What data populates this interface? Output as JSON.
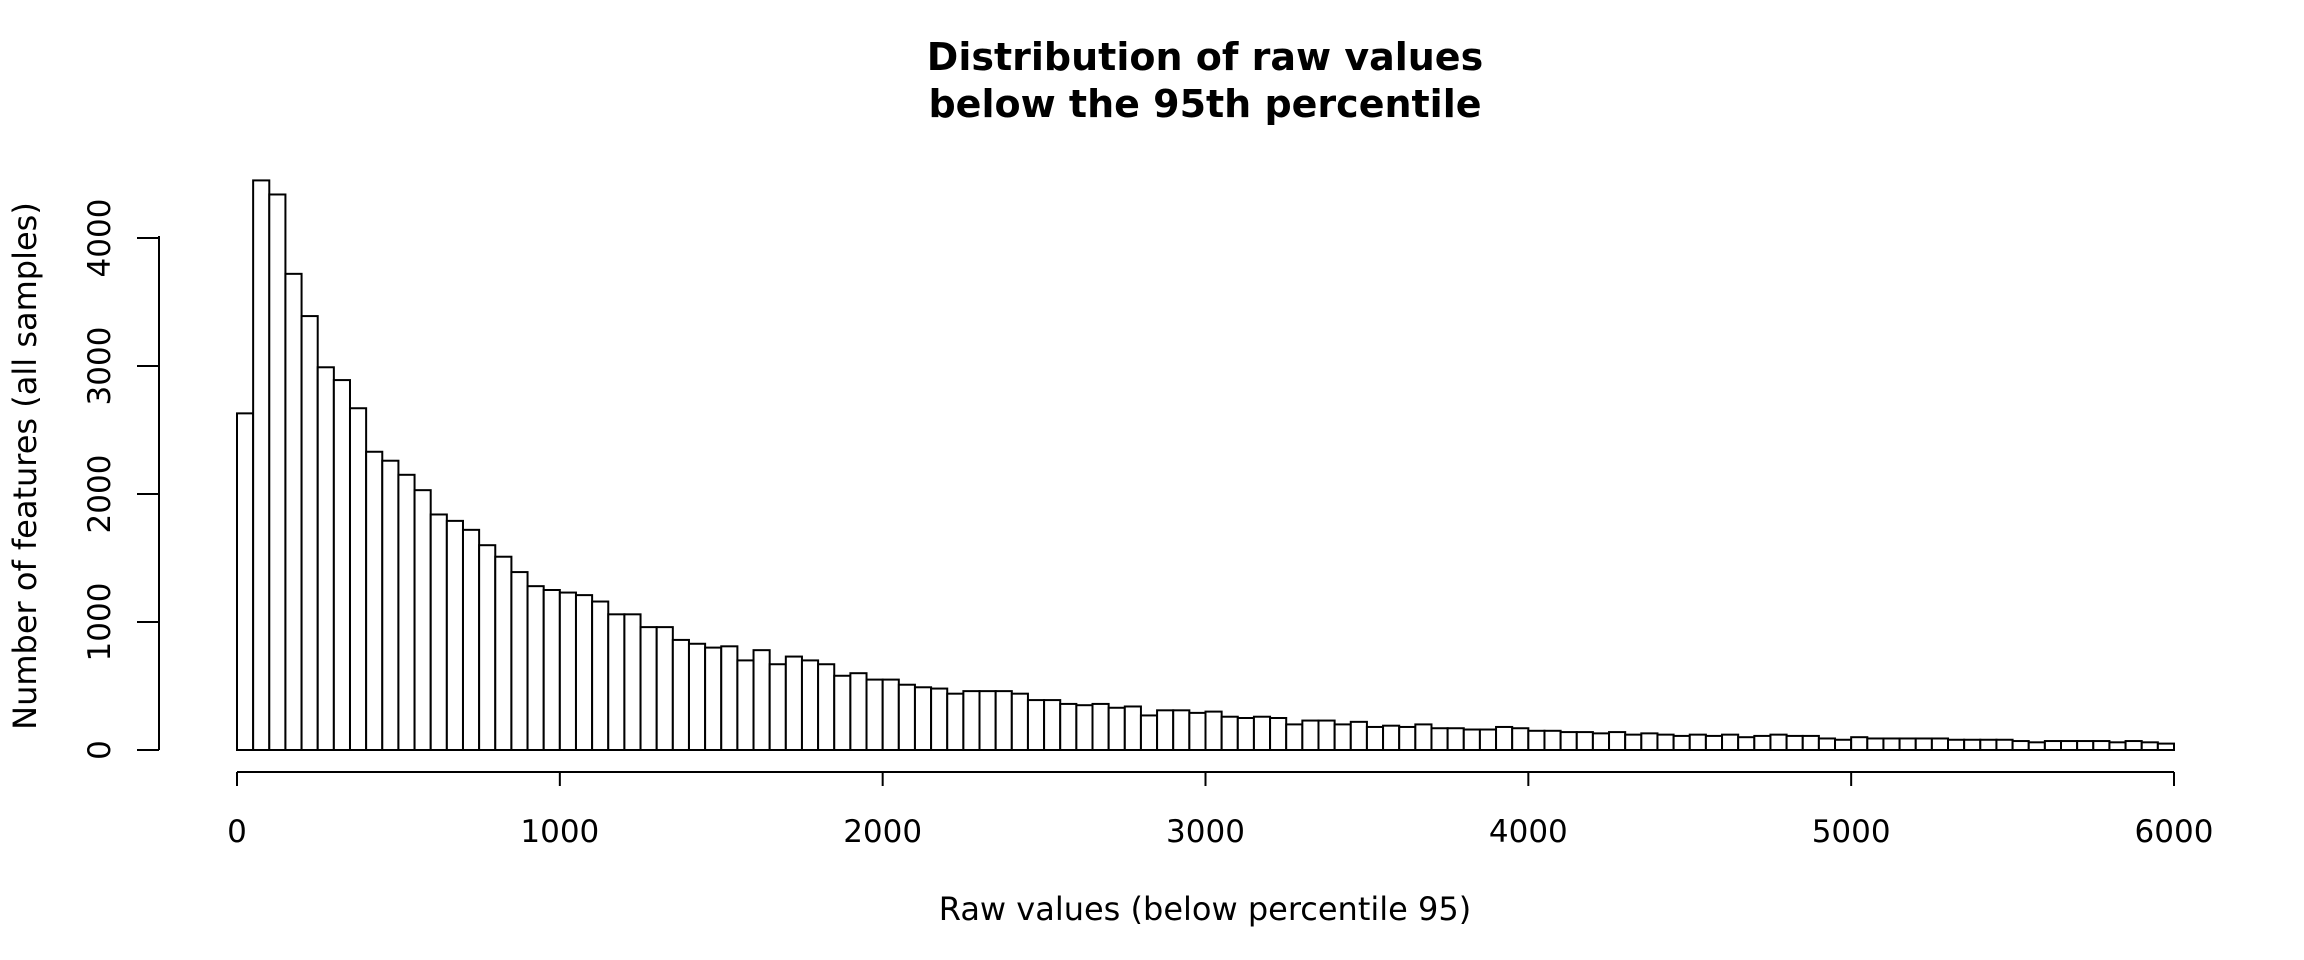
{
  "chart_data": {
    "type": "histogram",
    "title_line1": "Distribution of raw values",
    "title_line2": "below the 95th percentile",
    "xlabel": "Raw values (below percentile 95)",
    "ylabel": "Number of features (all samples)",
    "xlim": [
      0,
      6000
    ],
    "ylim": [
      0,
      4400
    ],
    "bin_width": 50,
    "xticks": [
      "0",
      "1000",
      "2000",
      "3000",
      "4000",
      "5000",
      "6000"
    ],
    "yticks": [
      "0",
      "1000",
      "2000",
      "3000",
      "4000"
    ],
    "grid": false,
    "bins_start": 0,
    "counts": [
      2630,
      4450,
      4340,
      3720,
      3390,
      2990,
      2890,
      2670,
      2330,
      2260,
      2150,
      2030,
      1840,
      1790,
      1720,
      1600,
      1510,
      1390,
      1280,
      1250,
      1230,
      1210,
      1160,
      1060,
      1060,
      960,
      960,
      860,
      830,
      800,
      810,
      700,
      780,
      670,
      730,
      700,
      670,
      580,
      600,
      550,
      550,
      510,
      490,
      480,
      440,
      460,
      460,
      460,
      440,
      390,
      390,
      360,
      350,
      360,
      330,
      340,
      270,
      310,
      310,
      290,
      300,
      260,
      250,
      260,
      250,
      200,
      230,
      230,
      200,
      220,
      180,
      190,
      180,
      200,
      170,
      170,
      160,
      160,
      180,
      170,
      150,
      150,
      140,
      140,
      130,
      140,
      120,
      130,
      120,
      110,
      120,
      110,
      120,
      100,
      110,
      120,
      110,
      110,
      90,
      80,
      100,
      90,
      90,
      90,
      90,
      90,
      80,
      80,
      80,
      80,
      70,
      60,
      70,
      70,
      70,
      70,
      60,
      70,
      60,
      50
    ]
  }
}
